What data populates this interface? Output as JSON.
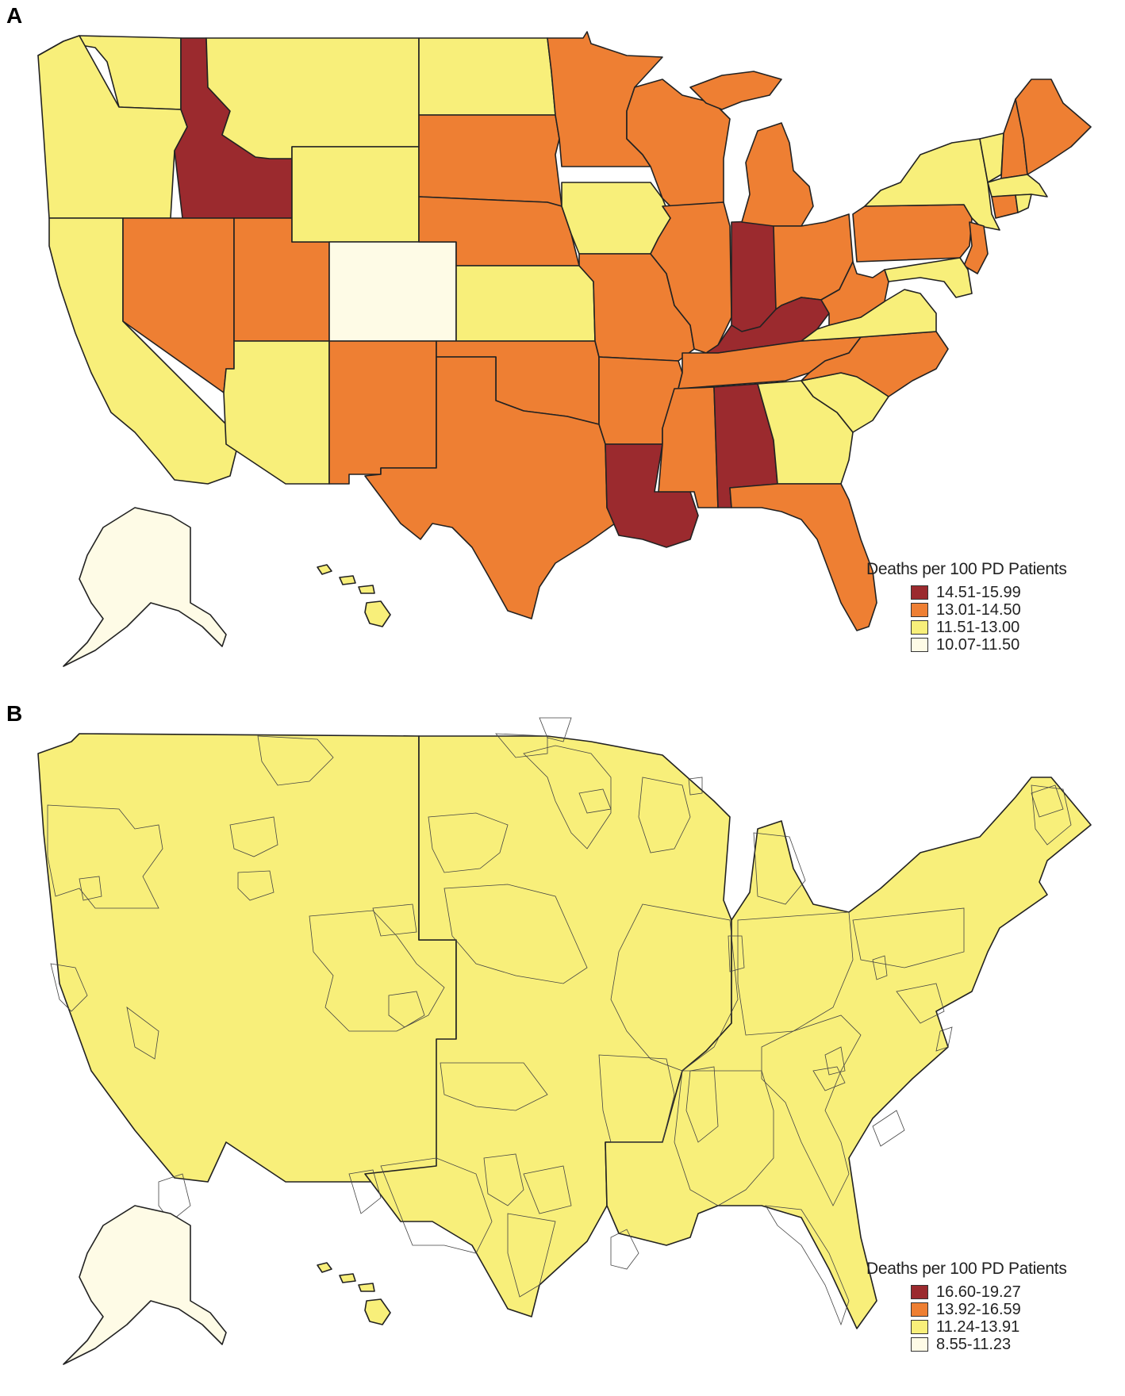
{
  "colors": {
    "dark_red": "#9b2a2e",
    "orange": "#ee7f33",
    "yellow": "#f8ef7a",
    "pale": "#fefbe6",
    "outline": "#222222"
  },
  "panel_a": {
    "label": "A",
    "legend_title": "Deaths per 100 PD Patients",
    "legend": [
      {
        "label": "14.51-15.99",
        "color": "#9b2a2e"
      },
      {
        "label": "13.01-14.50",
        "color": "#ee7f33"
      },
      {
        "label": "11.51-13.00",
        "color": "#f8ef7a"
      },
      {
        "label": "10.07-11.50",
        "color": "#fefbe6"
      }
    ]
  },
  "panel_b": {
    "label": "B",
    "legend_title": "Deaths per 100 PD Patients",
    "legend": [
      {
        "label": "16.60-19.27",
        "color": "#9b2a2e"
      },
      {
        "label": "13.92-16.59",
        "color": "#ee7f33"
      },
      {
        "label": "11.24-13.91",
        "color": "#f8ef7a"
      },
      {
        "label": "8.55-11.23",
        "color": "#fefbe6"
      }
    ]
  }
}
